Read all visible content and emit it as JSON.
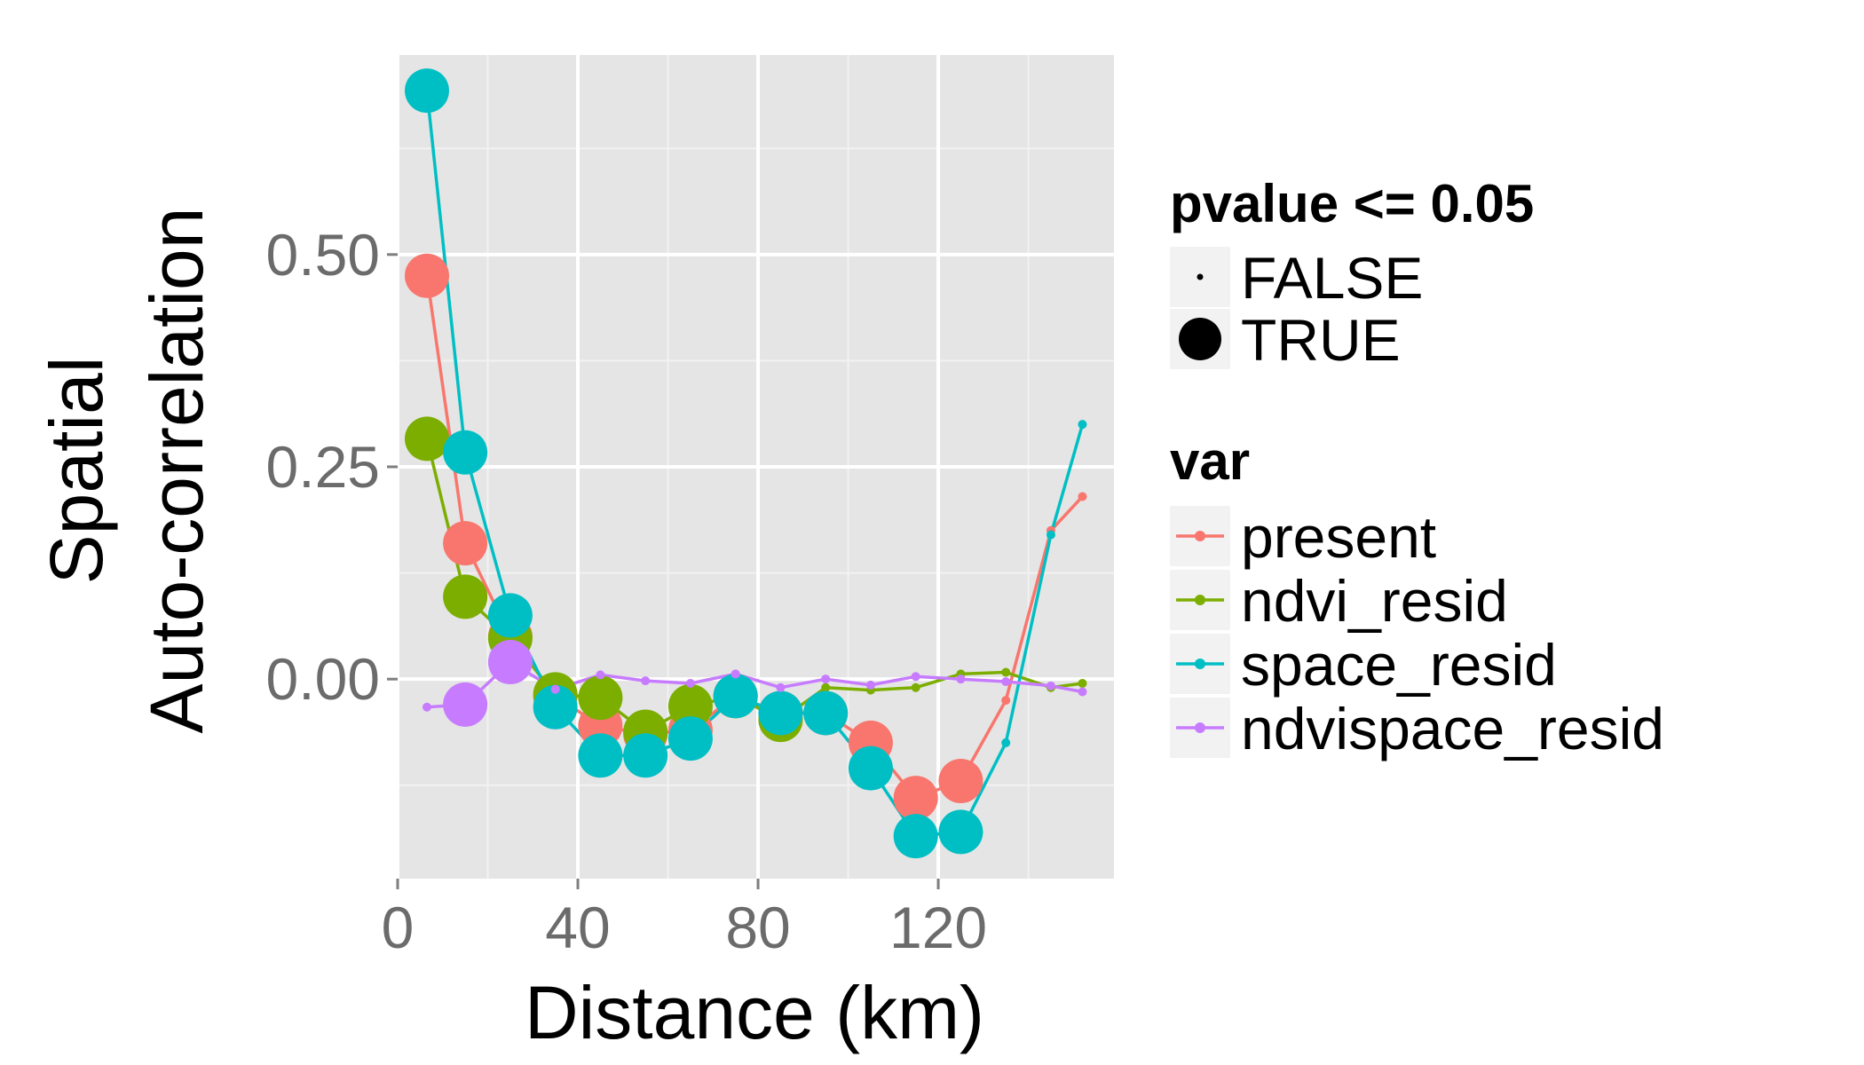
{
  "chart_data": {
    "type": "line",
    "title": "",
    "xlabel": "Distance (km)",
    "ylabel": [
      "Spatial",
      "Auto-correlation"
    ],
    "xlim": [
      0,
      159
    ],
    "ylim": [
      -0.235,
      0.735
    ],
    "x_ticks": [
      0,
      40,
      80,
      120
    ],
    "x_tick_labels": [
      "0",
      "40",
      "80",
      "120"
    ],
    "y_ticks": [
      0.0,
      0.25,
      0.5
    ],
    "y_tick_labels": [
      "0.00",
      "0.25",
      "0.50"
    ],
    "grid": true,
    "legend_position": "right",
    "x": [
      6.5,
      15,
      25,
      35,
      45,
      55,
      65,
      75,
      85,
      95,
      105,
      115,
      125,
      135,
      145,
      152
    ],
    "series": [
      {
        "name": "present",
        "color": "#F8766D",
        "values": [
          0.475,
          0.16,
          0.05,
          -0.02,
          -0.055,
          -0.065,
          -0.06,
          -0.02,
          -0.04,
          -0.04,
          -0.075,
          -0.14,
          -0.12,
          -0.025,
          0.175,
          0.215
        ],
        "significant": [
          true,
          true,
          true,
          true,
          true,
          true,
          true,
          true,
          true,
          true,
          true,
          true,
          true,
          false,
          false,
          false
        ]
      },
      {
        "name": "ndvi_resid",
        "color": "#7CAE00",
        "values": [
          0.283,
          0.097,
          0.048,
          -0.018,
          -0.022,
          -0.062,
          -0.032,
          -0.02,
          -0.048,
          -0.01,
          -0.013,
          -0.01,
          0.006,
          0.008,
          -0.01,
          -0.005
        ],
        "significant": [
          true,
          true,
          true,
          true,
          true,
          true,
          true,
          true,
          true,
          false,
          false,
          false,
          false,
          false,
          false,
          false
        ]
      },
      {
        "name": "space_resid",
        "color": "#00BFC4",
        "values": [
          0.693,
          0.267,
          0.075,
          -0.033,
          -0.09,
          -0.09,
          -0.07,
          -0.02,
          -0.04,
          -0.04,
          -0.105,
          -0.185,
          -0.18,
          -0.075,
          0.17,
          0.3
        ],
        "significant": [
          true,
          true,
          true,
          true,
          true,
          true,
          true,
          true,
          true,
          true,
          true,
          true,
          true,
          false,
          false,
          false
        ]
      },
      {
        "name": "ndvispace_resid",
        "color": "#C77CFF",
        "values": [
          -0.033,
          -0.03,
          0.02,
          -0.012,
          0.005,
          -0.002,
          -0.005,
          0.006,
          -0.01,
          0.0,
          -0.007,
          0.003,
          0.0,
          -0.003,
          -0.008,
          -0.015
        ],
        "significant": [
          false,
          true,
          true,
          false,
          false,
          false,
          false,
          false,
          false,
          false,
          false,
          false,
          false,
          false,
          false,
          false
        ]
      }
    ],
    "legend_pvalue": {
      "title": "pvalue <= 0.05",
      "entries": [
        "FALSE",
        "TRUE"
      ]
    },
    "legend_var": {
      "title": "var"
    }
  }
}
